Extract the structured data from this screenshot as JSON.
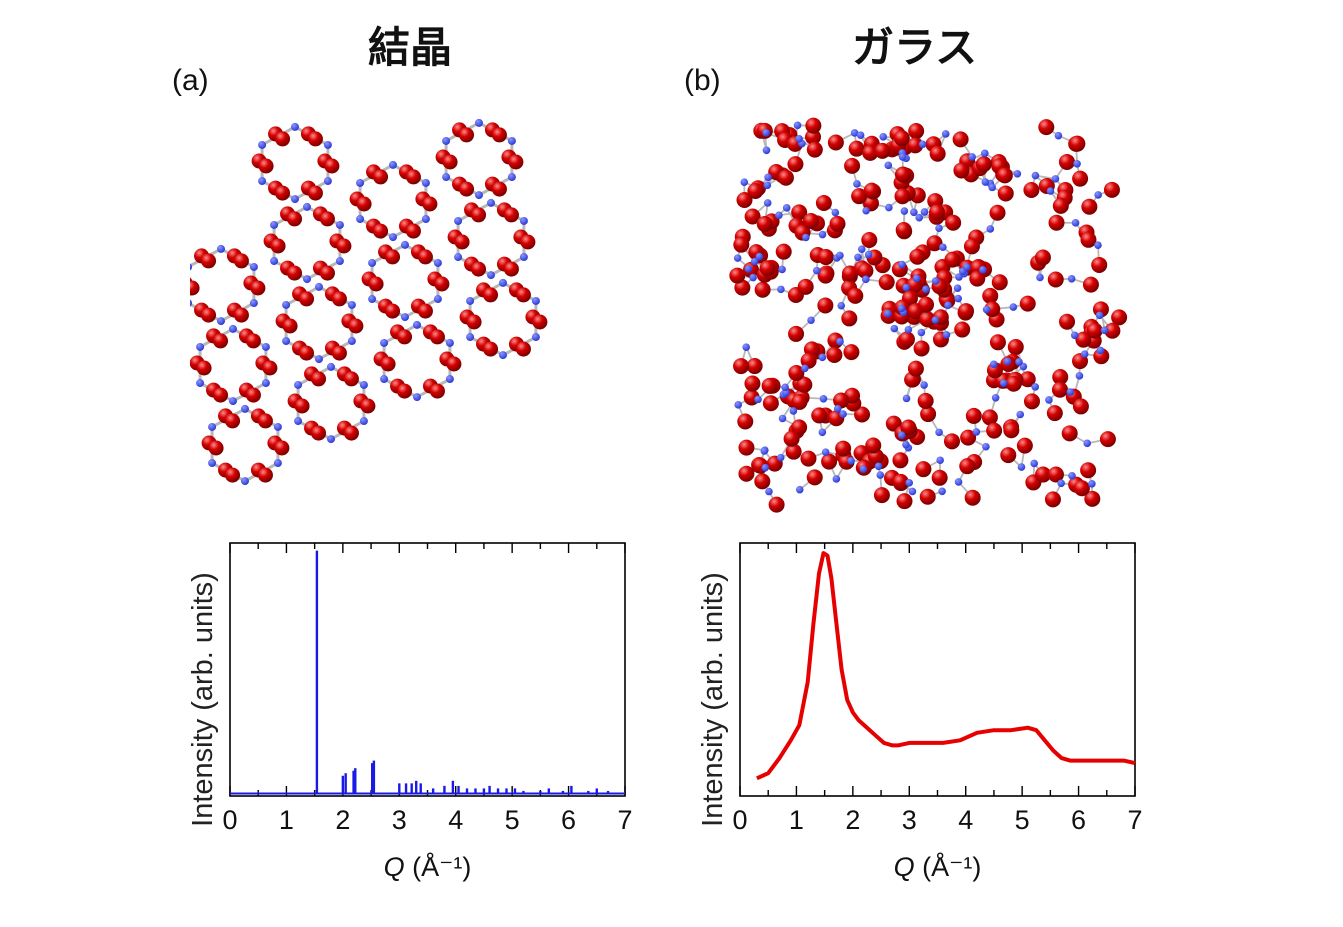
{
  "titles": {
    "a": "結晶",
    "b": "ガラス"
  },
  "panels": {
    "a": "(a)",
    "b": "(b)"
  },
  "structures": {
    "a": {
      "description_name": "crystal-network",
      "atom_colors": {
        "oxygen": "#d40000",
        "silicon": "#2b3bd6",
        "bond": "#b8b8b8"
      }
    },
    "b": {
      "description_name": "glass-network",
      "atom_colors": {
        "oxygen": "#d40000",
        "silicon": "#2b3bd6",
        "bond": "#b8b8b8"
      }
    }
  },
  "chart_data": [
    {
      "id": "a",
      "type": "line",
      "style": "spectrum-peaks",
      "color": "#1a1ae6",
      "xlabel_italic": "Q",
      "xlabel_rest": " (Å⁻¹)",
      "ylabel": "Intensity (arb. units)",
      "xlim": [
        0,
        7
      ],
      "ylim": [
        0,
        1
      ],
      "xticks": [
        "0",
        "1",
        "2",
        "3",
        "4",
        "5",
        "6",
        "7"
      ],
      "peaks": [
        [
          1.54,
          0.97
        ],
        [
          2.0,
          0.08
        ],
        [
          2.05,
          0.09
        ],
        [
          2.19,
          0.1
        ],
        [
          2.22,
          0.11
        ],
        [
          2.52,
          0.13
        ],
        [
          2.55,
          0.14
        ],
        [
          3.0,
          0.05
        ],
        [
          3.12,
          0.05
        ],
        [
          3.22,
          0.05
        ],
        [
          3.3,
          0.06
        ],
        [
          3.38,
          0.05
        ],
        [
          3.6,
          0.03
        ],
        [
          3.8,
          0.04
        ],
        [
          3.95,
          0.06
        ],
        [
          4.05,
          0.04
        ],
        [
          4.2,
          0.03
        ],
        [
          4.35,
          0.03
        ],
        [
          4.5,
          0.03
        ],
        [
          4.6,
          0.04
        ],
        [
          4.75,
          0.03
        ],
        [
          4.9,
          0.03
        ],
        [
          5.05,
          0.03
        ],
        [
          5.2,
          0.02
        ],
        [
          5.5,
          0.02
        ],
        [
          5.65,
          0.03
        ],
        [
          5.9,
          0.02
        ],
        [
          6.05,
          0.04
        ],
        [
          6.35,
          0.02
        ],
        [
          6.5,
          0.03
        ],
        [
          6.7,
          0.02
        ]
      ],
      "baseline": 0.01
    },
    {
      "id": "b",
      "type": "line",
      "color": "#e60000",
      "xlabel_italic": "Q",
      "xlabel_rest": " (Å⁻¹)",
      "ylabel": "Intensity (arb. units)",
      "xlim": [
        0,
        7
      ],
      "ylim": [
        0,
        1
      ],
      "xticks": [
        "0",
        "1",
        "2",
        "3",
        "4",
        "5",
        "6",
        "7"
      ],
      "x": [
        0.3,
        0.5,
        0.7,
        0.9,
        1.05,
        1.2,
        1.3,
        1.4,
        1.48,
        1.55,
        1.62,
        1.7,
        1.8,
        1.9,
        2.0,
        2.1,
        2.25,
        2.4,
        2.55,
        2.7,
        2.8,
        3.0,
        3.3,
        3.6,
        3.9,
        4.2,
        4.5,
        4.8,
        5.1,
        5.25,
        5.4,
        5.55,
        5.7,
        5.85,
        6.0,
        6.3,
        6.6,
        6.8,
        7.0
      ],
      "y": [
        0.07,
        0.09,
        0.15,
        0.22,
        0.28,
        0.45,
        0.68,
        0.88,
        0.96,
        0.95,
        0.86,
        0.7,
        0.5,
        0.38,
        0.33,
        0.3,
        0.27,
        0.24,
        0.21,
        0.2,
        0.2,
        0.21,
        0.21,
        0.21,
        0.22,
        0.25,
        0.26,
        0.26,
        0.27,
        0.26,
        0.22,
        0.18,
        0.15,
        0.14,
        0.14,
        0.14,
        0.14,
        0.14,
        0.13
      ]
    }
  ]
}
